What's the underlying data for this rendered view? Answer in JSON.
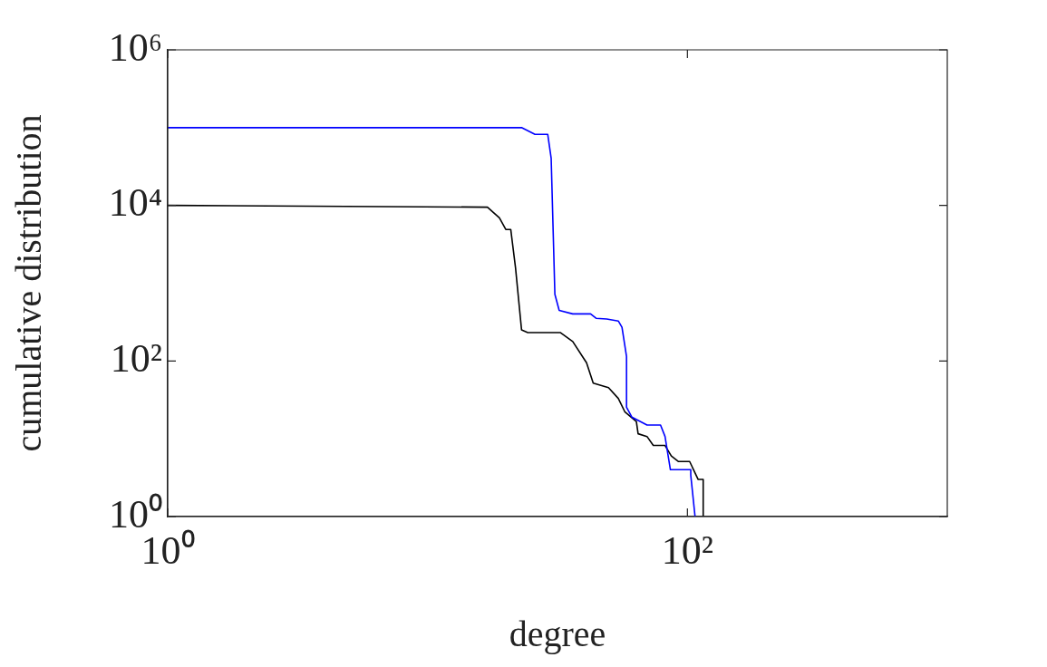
{
  "chart_data": {
    "type": "line",
    "xlabel": "degree",
    "ylabel": "cumulative distribution",
    "log": "xy",
    "xlim": [
      1,
      1000
    ],
    "ylim": [
      1,
      1000000
    ],
    "xticks": [
      {
        "value": 1,
        "label": "10⁰"
      },
      {
        "value": 100,
        "label": "10²"
      }
    ],
    "yticks": [
      {
        "value": 1,
        "label": "10⁰"
      },
      {
        "value": 100,
        "label": "10²"
      },
      {
        "value": 10000,
        "label": "10⁴"
      },
      {
        "value": 1000000,
        "label": "10⁶"
      }
    ],
    "grid": false,
    "legend": false,
    "marker": "none",
    "line_style": "solid",
    "series": [
      {
        "color": "#0000ff",
        "x": [
          1,
          23,
          25.9,
          29,
          29.9,
          30.9,
          32.1,
          36.2,
          42.4,
          44.5,
          48.9,
          54.2,
          56,
          58.3,
          58.3,
          61.1,
          69.9,
          78.8,
          82,
          86,
          103,
          103,
          107
        ],
        "values": [
          100000,
          100000,
          82000,
          82000,
          40300,
          720,
          448,
          403,
          403,
          354,
          346,
          327,
          272,
          114,
          25.5,
          19,
          15,
          15,
          10.7,
          4,
          4,
          3.4,
          1
        ]
      },
      {
        "color": "#000000",
        "x": [
          1,
          17,
          18.9,
          20,
          20.9,
          21.8,
          23,
          24.3,
          32.4,
          36.2,
          40.1,
          40.9,
          43.4,
          49.7,
          54.2,
          57.4,
          63.6,
          64.6,
          69.9,
          73.9,
          82,
          86.7,
          92.4,
          102,
          110,
          115,
          115
        ],
        "values": [
          10000,
          9500,
          6920,
          4910,
          4910,
          1585,
          251,
          232,
          232,
          178,
          105,
          95,
          51.8,
          45.4,
          33,
          22.3,
          16.7,
          11.6,
          10.7,
          8.2,
          8.2,
          6,
          5.1,
          5.1,
          3,
          3,
          1
        ]
      }
    ]
  }
}
